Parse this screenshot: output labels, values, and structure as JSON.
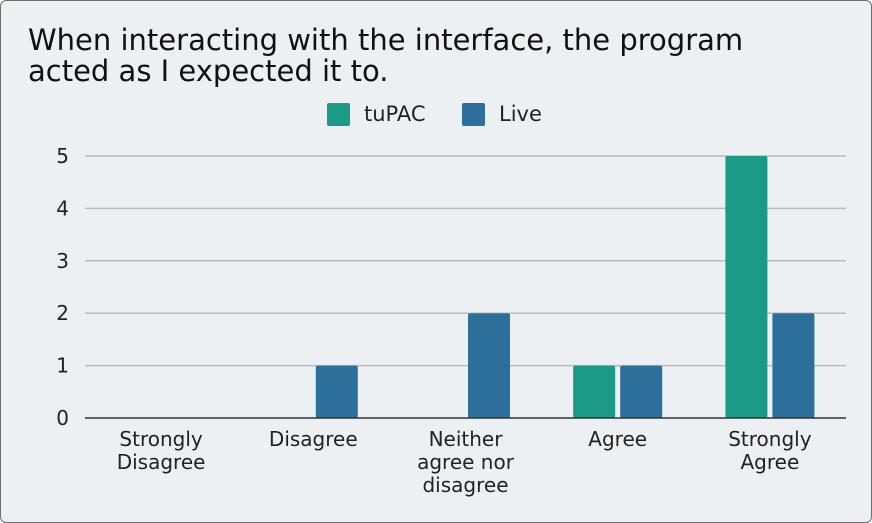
{
  "chart_data": {
    "type": "bar",
    "title": "When interacting with the interface, the program acted as I expected it to.",
    "categories": [
      [
        "Strongly",
        "Disagree"
      ],
      [
        "Disagree"
      ],
      [
        "Neither",
        "agree nor",
        "disagree"
      ],
      [
        "Agree"
      ],
      [
        "Strongly",
        "Agree"
      ]
    ],
    "series": [
      {
        "name": "tuPAC",
        "values": [
          0,
          0,
          0,
          1,
          5
        ],
        "color": "#1a9a87"
      },
      {
        "name": "Live",
        "values": [
          0,
          1,
          2,
          1,
          2
        ],
        "color": "#2d6f9b"
      }
    ],
    "ylim": [
      0,
      5
    ],
    "yticks": [
      0,
      1,
      2,
      3,
      4,
      5
    ],
    "xlabel": "",
    "ylabel": "",
    "grid": true,
    "legend": "top-center"
  }
}
